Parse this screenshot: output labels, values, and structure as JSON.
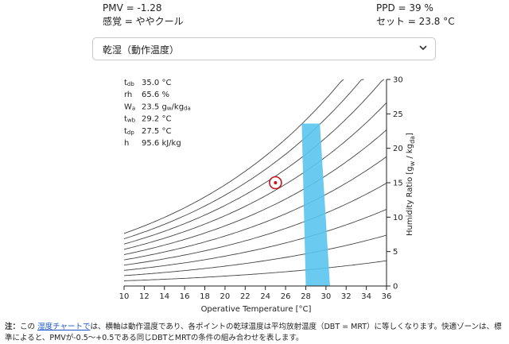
{
  "results": {
    "pmv": "PMV = -1.28",
    "sensation": "感覚 = ややクール",
    "ppd": "PPD = 39 %",
    "set": "セット = 23.8 °C"
  },
  "selector": {
    "value": "乾湿（動作温度）"
  },
  "readout": [
    {
      "label": "t",
      "sub": "db",
      "value": "35.0 °C"
    },
    {
      "label": "rh",
      "sub": "",
      "value": "65.6 %"
    },
    {
      "label": "W",
      "sub": "a",
      "value": "23.5 g",
      "value_sub": "w",
      "value_rest": "/kg",
      "value_sub2": "da"
    },
    {
      "label": "t",
      "sub": "wb",
      "value": "29.2 °C"
    },
    {
      "label": "t",
      "sub": "dp",
      "value": "27.5 °C"
    },
    {
      "label": "h",
      "sub": "",
      "value": "95.6 kJ/kg"
    }
  ],
  "chart_data": {
    "type": "scatter",
    "xlabel": "Operative Temperature [°C]",
    "ylabel": "Humidity Ratio [g_w / kg_da]",
    "xlim": [
      10,
      36
    ],
    "ylim": [
      0,
      30
    ],
    "x_ticks": [
      "10",
      "12",
      "14",
      "16",
      "18",
      "20",
      "22",
      "24",
      "26",
      "28",
      "30",
      "32",
      "34",
      "36"
    ],
    "y_ticks": [
      "0",
      "5",
      "10",
      "15",
      "20",
      "25",
      "30"
    ],
    "rh_curves": [
      10,
      20,
      30,
      40,
      50,
      60,
      70,
      80,
      90,
      100
    ],
    "comfort_zone": [
      [
        27.6,
        23.6
      ],
      [
        29.4,
        23.6
      ],
      [
        30.4,
        0
      ],
      [
        28.0,
        0
      ]
    ],
    "current_point": {
      "x": 25.0,
      "y": 15.0
    },
    "colors": {
      "zone": "#5bc4ee",
      "point": "#c0141c",
      "curve": "#444444"
    }
  },
  "note": {
    "bold": "注：",
    "text1": "この",
    "link": "湿度チャートで",
    "text2": "は、横軸は動作温度であり、各ポイントの乾球温度は平均放射温度（DBT = MRT）に等しくなります。快適ゾーンは、標準によると、PMVが-0.5～+0.5である同じDBTとMRTの条件の組み合わせを表します。"
  }
}
